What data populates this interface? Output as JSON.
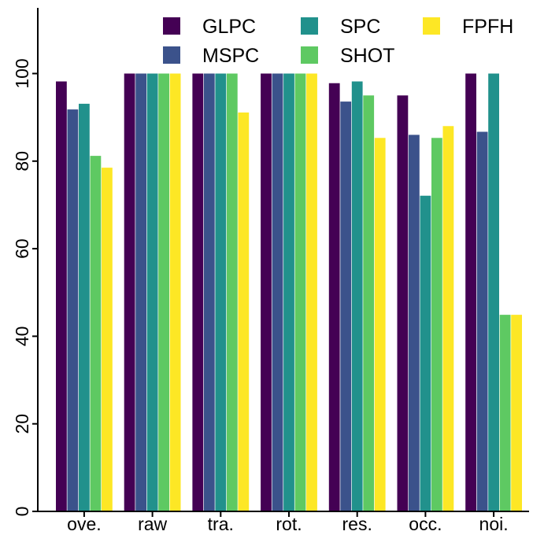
{
  "chart_data": {
    "type": "bar",
    "title": "",
    "xlabel": "",
    "ylabel": "",
    "categories": [
      "ove.",
      "raw",
      "tra.",
      "rot.",
      "res.",
      "occ.",
      "noi."
    ],
    "ylim": [
      0,
      115
    ],
    "yticks": [
      0,
      20,
      40,
      60,
      80,
      100
    ],
    "grid": false,
    "legend": {
      "placement": "top-right",
      "columns": 3
    },
    "series": [
      {
        "name": "GLPC",
        "color": "#440154",
        "values": [
          98.2,
          100,
          100,
          100,
          97.8,
          95.0,
          100
        ]
      },
      {
        "name": "MSPC",
        "color": "#3b528b",
        "values": [
          91.8,
          100,
          100,
          100,
          93.6,
          86.0,
          86.7
        ]
      },
      {
        "name": "SPC",
        "color": "#21918c",
        "values": [
          93.1,
          100,
          100,
          100,
          98.2,
          72.1,
          100
        ]
      },
      {
        "name": "SHOT",
        "color": "#5ec962",
        "values": [
          81.2,
          100,
          100,
          100,
          95.0,
          85.3,
          44.9
        ]
      },
      {
        "name": "FPFH",
        "color": "#fde725",
        "values": [
          78.5,
          100,
          91.1,
          100,
          85.3,
          88.0,
          44.9
        ]
      }
    ]
  }
}
